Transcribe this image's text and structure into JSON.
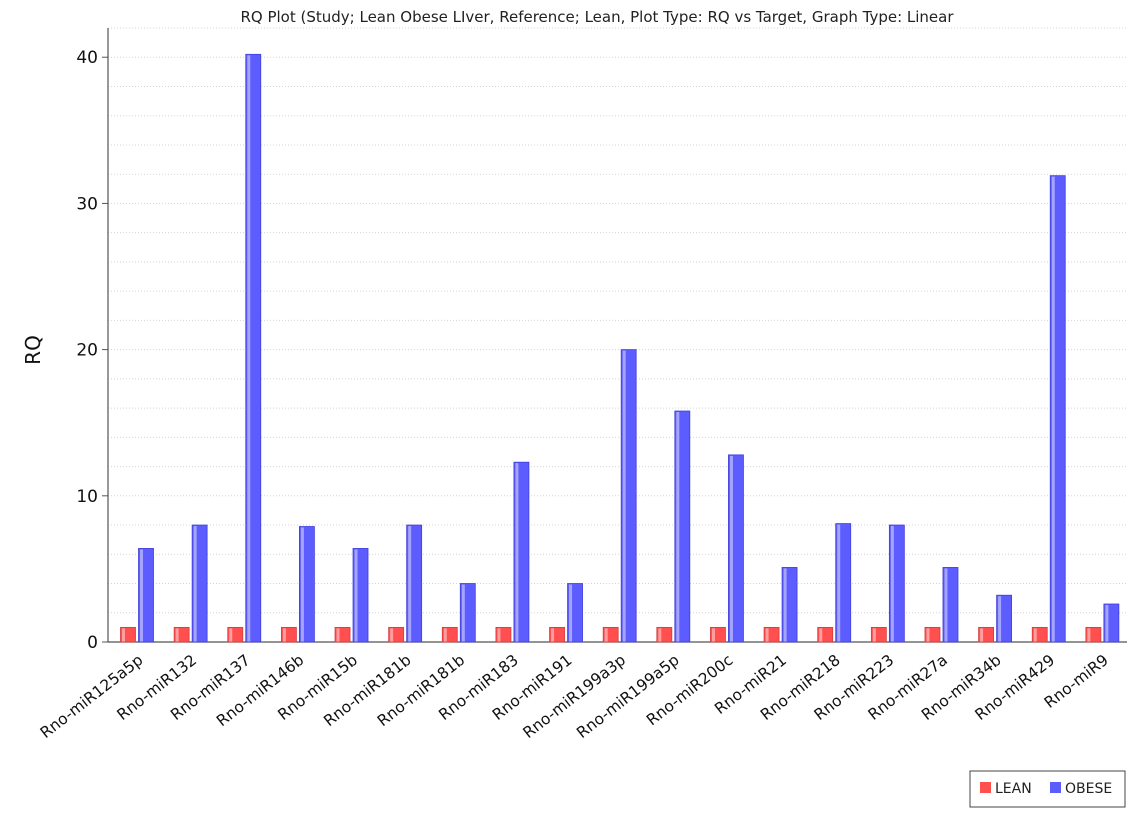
{
  "chart_data": {
    "type": "bar",
    "title": "RQ Plot (Study; Lean Obese LIver, Reference; Lean, Plot Type: RQ vs Target, Graph Type: Linear",
    "xlabel": "",
    "ylabel": "RQ",
    "ylim": [
      0,
      42
    ],
    "yticks": [
      0,
      10,
      20,
      30,
      40
    ],
    "grid": true,
    "legend_position": "bottom-right",
    "categories": [
      "Rno-miR125a5p",
      "Rno-miR132",
      "Rno-miR137",
      "Rno-miR146b",
      "Rno-miR15b",
      "Rno-miR181b",
      "Rno-miR181b",
      "Rno-miR183",
      "Rno-miR191",
      "Rno-miR199a3p",
      "Rno-miR199a5p",
      "Rno-miR200c",
      "Rno-miR21",
      "Rno-miR218",
      "Rno-miR223",
      "Rno-miR27a",
      "Rno-miR34b",
      "Rno-miR429",
      "Rno-miR9"
    ],
    "series": [
      {
        "name": "LEAN",
        "color": "#ff4f4f",
        "values": [
          1,
          1,
          1,
          1,
          1,
          1,
          1,
          1,
          1,
          1,
          1,
          1,
          1,
          1,
          1,
          1,
          1,
          1,
          1
        ]
      },
      {
        "name": "OBESE",
        "color": "#5c5cff",
        "values": [
          6.4,
          8.0,
          40.2,
          7.9,
          6.4,
          8.0,
          4.0,
          12.3,
          4.0,
          20.0,
          15.8,
          12.8,
          5.1,
          8.1,
          8.0,
          5.1,
          3.2,
          31.9,
          2.6
        ]
      }
    ]
  }
}
